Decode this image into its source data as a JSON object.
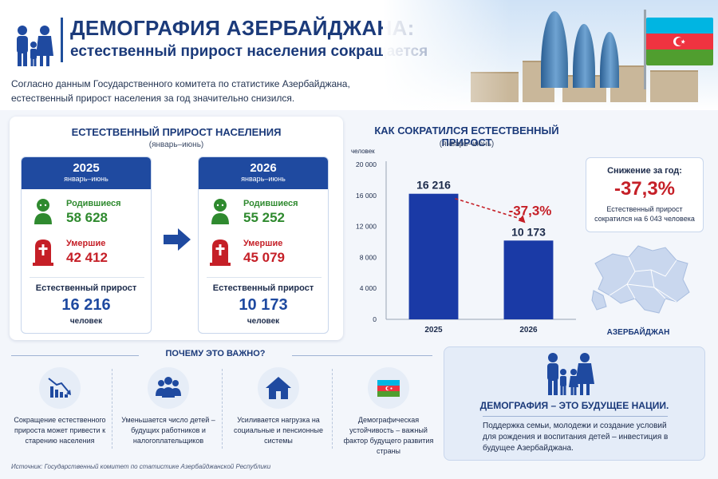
{
  "header": {
    "title_line1": "ДЕМОГРАФИЯ АЗЕРБАЙДЖАНА:",
    "title_line2": "естественный прирост населения сокращается",
    "intro": "Согласно данным Государственного комитета по статистике Азербайджана, естественный прирост населения за год значительно снизился."
  },
  "left_panel": {
    "title": "ЕСТЕСТВЕННЫЙ ПРИРОСТ НАСЕЛЕНИЯ",
    "subtitle": "(январь–июнь)",
    "cards": [
      {
        "year": "2025",
        "period": "январь–июнь",
        "births_label": "Родившиеся",
        "births": "58 628",
        "deaths_label": "Умершие",
        "deaths": "42 412",
        "net_label": "Естественный прирост",
        "net": "16 216",
        "unit": "человек"
      },
      {
        "year": "2026",
        "period": "январь–июнь",
        "births_label": "Родившиеся",
        "births": "55 252",
        "deaths_label": "Умершие",
        "deaths": "45 079",
        "net_label": "Естественный прирост",
        "net": "10 173",
        "unit": "человек"
      }
    ]
  },
  "chart_data": {
    "type": "bar",
    "title": "КАК СОКРАТИЛСЯ ЕСТЕСТВЕННЫЙ ПРИРОСТ",
    "subtitle": "(январь–июнь)",
    "ylabel": "человек",
    "categories": [
      "2025",
      "2026"
    ],
    "values": [
      16216,
      10173
    ],
    "value_labels": [
      "16 216",
      "10 173"
    ],
    "ylim": [
      0,
      20000
    ],
    "yticks": [
      0,
      4000,
      8000,
      12000,
      16000,
      20000
    ],
    "ytick_labels": [
      "0",
      "4 000",
      "8 000",
      "12 000",
      "16 000",
      "20 000"
    ],
    "annotation": "-37,3%",
    "bar_color": "#1a3aa6",
    "annotation_color": "#c51f27",
    "grid": false
  },
  "drop_box": {
    "label": "Снижение за год:",
    "value": "-37,3%",
    "note": "Естественный прирост сократился на 6 043 человека"
  },
  "map": {
    "label": "АЗЕРБАЙДЖАН"
  },
  "why": {
    "title": "ПОЧЕМУ ЭТО ВАЖНО?",
    "items": [
      {
        "icon": "declining-chart-icon",
        "text": "Сокращение естественного прироста может привести к старению населения"
      },
      {
        "icon": "people-group-icon",
        "text": "Уменьшается число детей – будущих работников и налогоплательщиков"
      },
      {
        "icon": "house-icon",
        "text": "Усиливается нагрузка на социальные и пенсионные системы"
      },
      {
        "icon": "azerbaijan-flag-icon",
        "text": "Демографическая устойчивость – важный фактор будущего развития страны"
      }
    ]
  },
  "future": {
    "title": "ДЕМОГРАФИЯ – ЭТО БУДУЩЕЕ НАЦИИ.",
    "text": "Поддержка семьи, молодежи и создание условий для рождения и воспитания детей – инвестиция в будущее Азербайджана."
  },
  "source": "Источник: Государственный комитет по статистике Азербайджанской Республики",
  "colors": {
    "navy": "#1b3a7a",
    "blue": "#1f4aa0",
    "green": "#2f8a2f",
    "red": "#c51f27"
  }
}
